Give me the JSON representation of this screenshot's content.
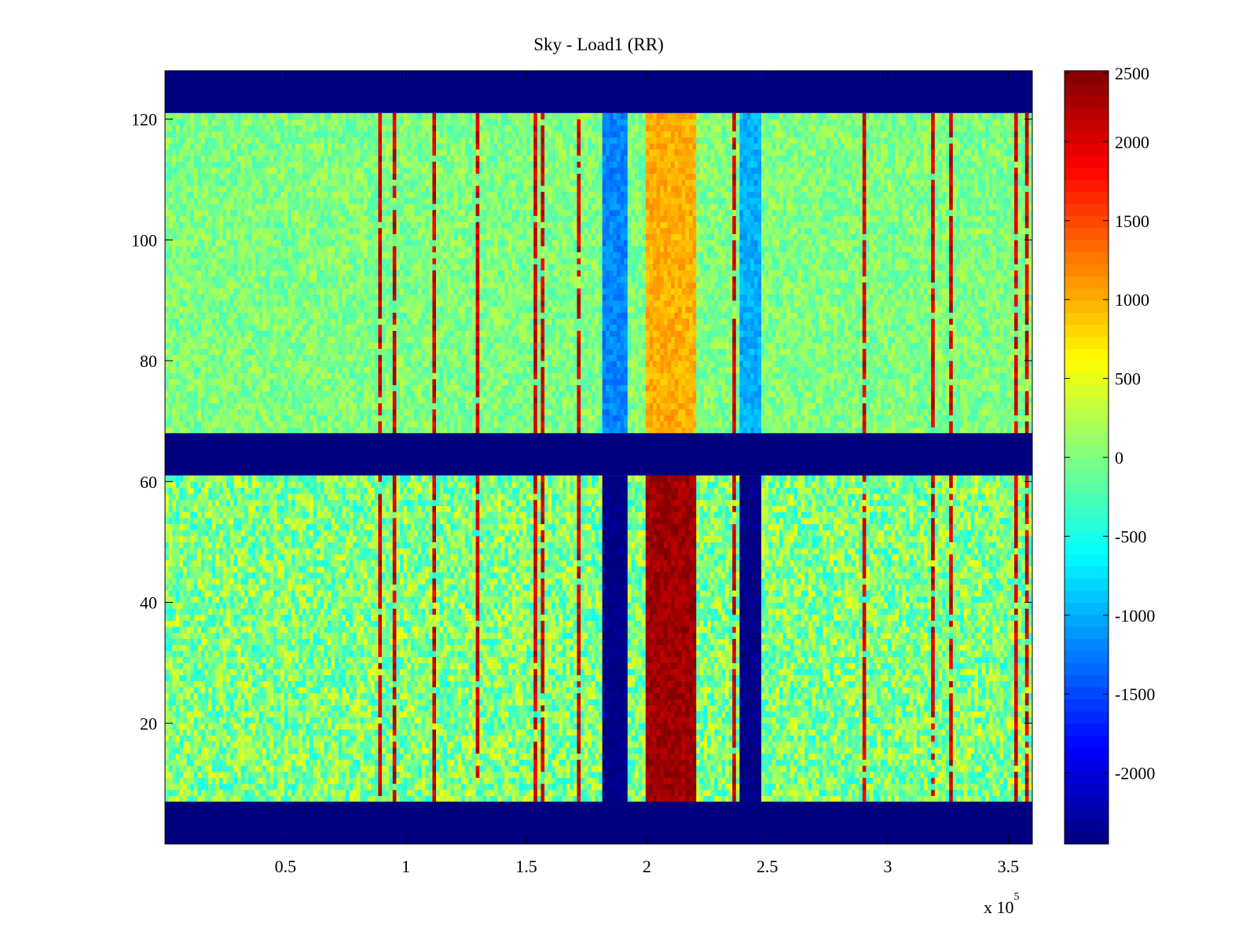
{
  "chart_data": {
    "type": "heatmap",
    "title": "Sky - Load1 (RR)",
    "xlabel": "",
    "ylabel": "",
    "x_multiplier_label": "x 10",
    "x_multiplier_exponent": "5",
    "xlim": [
      0,
      360000
    ],
    "ylim": [
      0,
      128
    ],
    "x_ticks": [
      {
        "value": 50000,
        "label": "0.5"
      },
      {
        "value": 100000,
        "label": "1"
      },
      {
        "value": 150000,
        "label": "1.5"
      },
      {
        "value": 200000,
        "label": "2"
      },
      {
        "value": 250000,
        "label": "2.5"
      },
      {
        "value": 300000,
        "label": "3"
      },
      {
        "value": 350000,
        "label": "3.5"
      }
    ],
    "y_ticks": [
      {
        "value": 20,
        "label": "20"
      },
      {
        "value": 40,
        "label": "40"
      },
      {
        "value": 60,
        "label": "60"
      },
      {
        "value": 80,
        "label": "80"
      },
      {
        "value": 100,
        "label": "100"
      },
      {
        "value": 120,
        "label": "120"
      }
    ],
    "colorbar": {
      "colormap": "jet",
      "range": [
        -2450,
        2450
      ],
      "ticks": [
        {
          "value": 2500,
          "label": "2500"
        },
        {
          "value": 2000,
          "label": "2000"
        },
        {
          "value": 1500,
          "label": "1500"
        },
        {
          "value": 1000,
          "label": "1000"
        },
        {
          "value": 500,
          "label": "500"
        },
        {
          "value": 0,
          "label": "0"
        },
        {
          "value": -500,
          "label": "-500"
        },
        {
          "value": -1000,
          "label": "-1000"
        },
        {
          "value": -1500,
          "label": "-1500"
        },
        {
          "value": -2000,
          "label": "-2000"
        }
      ]
    },
    "masked_rows": [
      [
        0,
        7
      ],
      [
        61,
        68
      ],
      [
        121,
        128
      ]
    ],
    "upper_band_rows": [
      68,
      121
    ],
    "lower_band_rows": [
      7,
      61
    ],
    "background_value": 0,
    "column_features": [
      {
        "x": [
          182000,
          192000
        ],
        "upper_value": -1200,
        "lower_value": -2450
      },
      {
        "x": [
          200000,
          221000
        ],
        "upper_value": 1000,
        "lower_value": 2300
      },
      {
        "x": [
          238000,
          248000
        ],
        "upper_value": -1000,
        "lower_value": -2450
      }
    ]
  }
}
